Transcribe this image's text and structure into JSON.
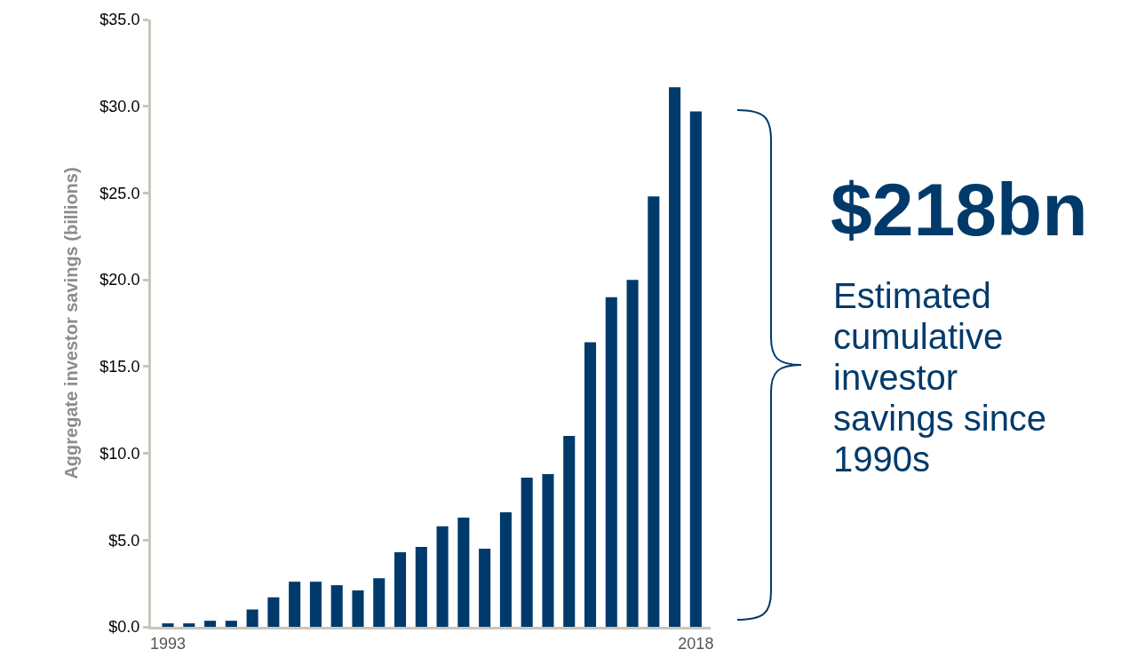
{
  "chart_data": {
    "type": "bar",
    "ylabel": "Aggregate investor savings (billions)",
    "categories": [
      "1993",
      null,
      null,
      null,
      null,
      null,
      null,
      null,
      null,
      null,
      null,
      null,
      null,
      null,
      null,
      null,
      null,
      null,
      null,
      null,
      null,
      null,
      null,
      null,
      null,
      "2018"
    ],
    "values": [
      0.2,
      0.2,
      0.35,
      0.35,
      1.0,
      1.7,
      2.6,
      2.6,
      2.4,
      2.1,
      2.8,
      4.3,
      4.6,
      5.8,
      6.3,
      4.5,
      6.6,
      8.6,
      8.8,
      11.0,
      16.4,
      19.0,
      20.0,
      24.8,
      31.1,
      29.7
    ],
    "color": "#003a6b",
    "ylim": [
      0,
      35
    ],
    "yticks": [
      {
        "value": 0,
        "label": "$0.0"
      },
      {
        "value": 5,
        "label": "$5.0"
      },
      {
        "value": 10,
        "label": "$10.0"
      },
      {
        "value": 15,
        "label": "$15.0"
      },
      {
        "value": 20,
        "label": "$20.0"
      },
      {
        "value": 25,
        "label": "$25.0"
      },
      {
        "value": 30,
        "label": "$30.0"
      },
      {
        "value": 35,
        "label": "$35.0"
      }
    ],
    "grid": false,
    "annotations": [
      "$218bn",
      "Estimated cumulative investor savings since 1990s"
    ]
  }
}
